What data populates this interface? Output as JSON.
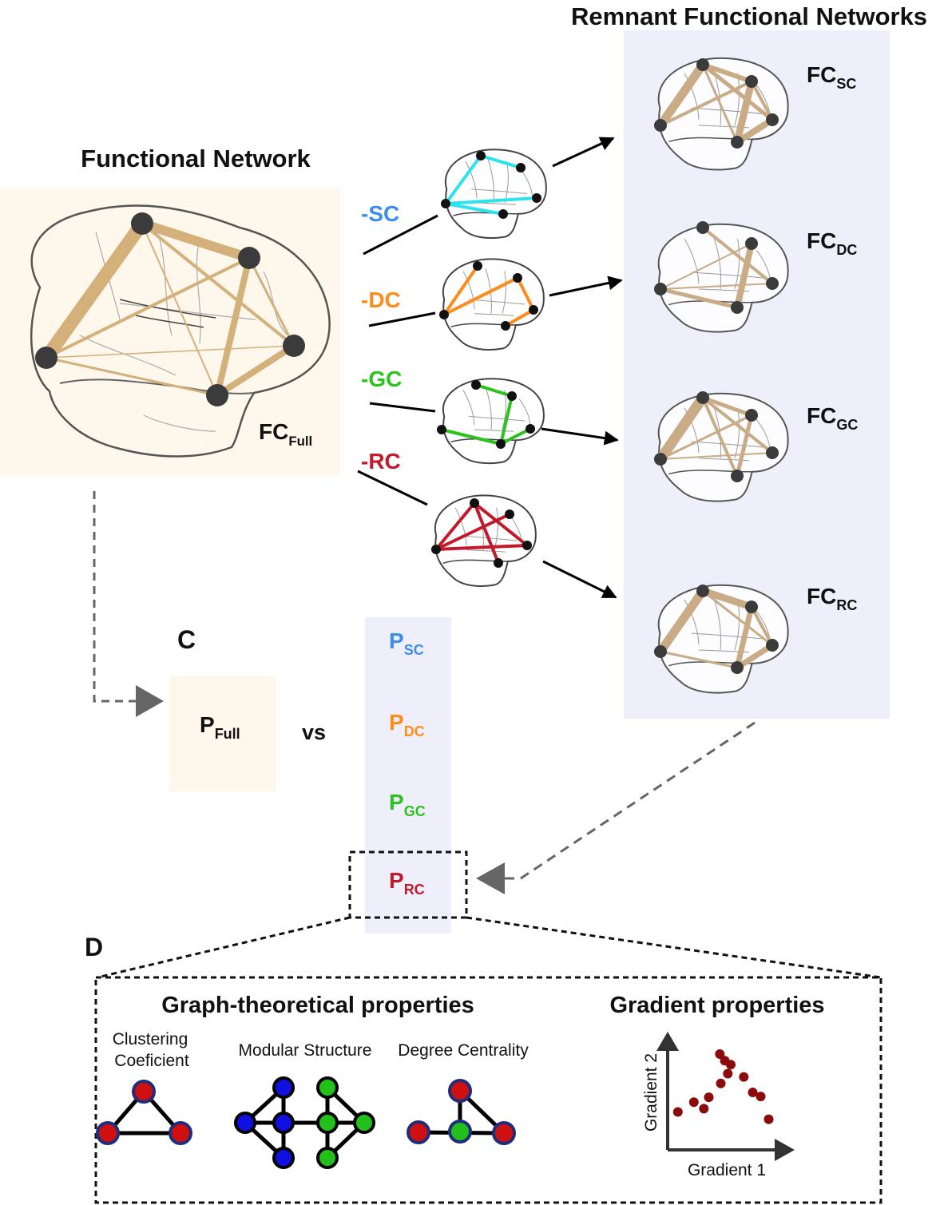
{
  "colors": {
    "full_bg": "#fdf7ec",
    "remnant_bg": "#efeffb",
    "edge": "#d4b07a",
    "edge_remnant": "#c9ab86",
    "node": "#3b3b3b",
    "sc": "#3b8ef0",
    "sc_edge": "#29e3ee",
    "dc": "#ff8c1a",
    "gc": "#2ec21f",
    "rc": "#c21a2b",
    "node_red": "#d01010",
    "node_blue": "#1010e0",
    "node_green": "#22c01a",
    "node_ring": "#1f2d7a",
    "scatter": "#8b0a0a",
    "dash": "#666666"
  },
  "titles": {
    "functional_network": "Functional Network",
    "remnant": "Remnant Functional Networks",
    "graph_props": "Graph-theoretical properties",
    "gradient_props": "Gradient properties"
  },
  "panel_letters": {
    "c": "C",
    "d": "D"
  },
  "full": {
    "fc_main": "FC",
    "fc_sub": "Full",
    "p_main": "P",
    "p_sub": "Full"
  },
  "vs": "vs",
  "removals": [
    {
      "label": "-SC"
    },
    {
      "label": "-DC"
    },
    {
      "label": "-GC"
    },
    {
      "label": "-RC"
    }
  ],
  "remnant_labels": [
    {
      "main": "FC",
      "sub": "SC"
    },
    {
      "main": "FC",
      "sub": "DC"
    },
    {
      "main": "FC",
      "sub": "GC"
    },
    {
      "main": "FC",
      "sub": "RC"
    }
  ],
  "p_labels": [
    {
      "main": "P",
      "sub": "SC"
    },
    {
      "main": "P",
      "sub": "DC"
    },
    {
      "main": "P",
      "sub": "GC"
    },
    {
      "main": "P",
      "sub": "RC"
    }
  ],
  "graph_items": {
    "clustering_1": "Clustering",
    "clustering_2": "Coeficient",
    "modular": "Modular Structure",
    "degree": "Degree Centrality"
  },
  "gradient_axes": {
    "x": "Gradient 1",
    "y": "Gradient 2"
  },
  "gradient_scatter": [
    [
      0.03,
      0.27
    ],
    [
      0.19,
      0.39
    ],
    [
      0.29,
      0.31
    ],
    [
      0.34,
      0.45
    ],
    [
      0.46,
      0.62
    ],
    [
      0.53,
      0.74
    ],
    [
      0.45,
      0.98
    ],
    [
      0.5,
      0.9
    ],
    [
      0.56,
      0.85
    ],
    [
      0.69,
      0.7
    ],
    [
      0.78,
      0.51
    ],
    [
      0.86,
      0.46
    ],
    [
      0.94,
      0.18
    ]
  ]
}
